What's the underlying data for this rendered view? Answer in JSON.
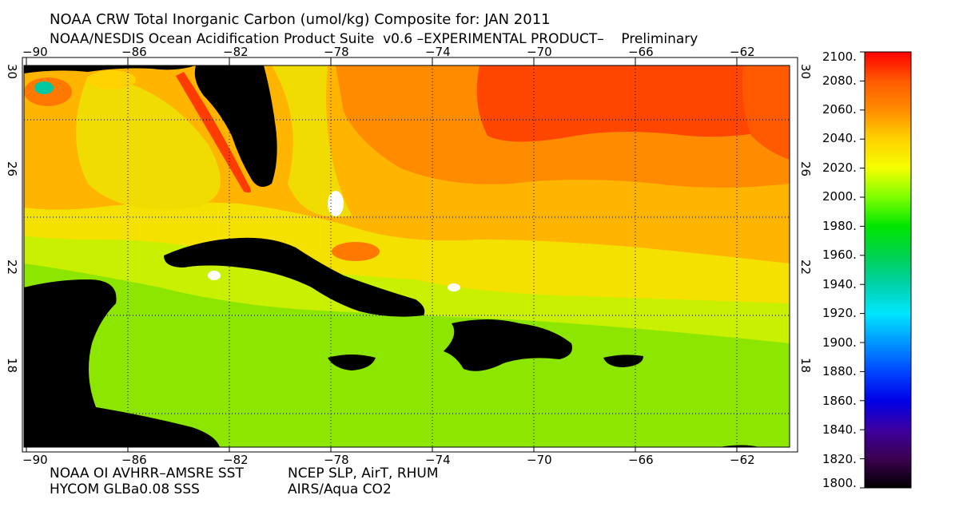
{
  "header": {
    "title": "NOAA CRW Total Inorganic Carbon (umol/kg) Composite for: JAN 2011",
    "subtitle": "NOAA/NESDIS Ocean Acidification Product Suite  v0.6 –EXPERIMENTAL PRODUCT–    Preliminary"
  },
  "map": {
    "lon_ticks": [
      "−90",
      "−86",
      "−82",
      "−78",
      "−74",
      "−70",
      "−66",
      "−62"
    ],
    "lat_ticks": [
      "30",
      "26",
      "22",
      "18"
    ]
  },
  "colorbar": {
    "labels": [
      "2100.",
      "2080.",
      "2060.",
      "2040.",
      "2020.",
      "2000.",
      "1980.",
      "1960.",
      "1940.",
      "1920.",
      "1900.",
      "1880.",
      "1860.",
      "1840.",
      "1820.",
      "1800."
    ],
    "colors": [
      "#ff0000",
      "#ff5a00",
      "#ff8c00",
      "#ffd200",
      "#f5ff00",
      "#7dff00",
      "#00e600",
      "#00d250",
      "#00d2aa",
      "#00e6ff",
      "#0096ff",
      "#0046ff",
      "#0000e6",
      "#3c00a0",
      "#3c0050",
      "#000000"
    ]
  },
  "credits": {
    "line1_left": "NOAA OI AVHRR–AMSRE SST",
    "line1_right": "NCEP SLP, AirT, RHUM",
    "line2_left": "HYCOM GLBa0.08 SSS",
    "line2_right": "AIRS/Aqua CO2"
  },
  "palette": {
    "ocean_green": "#8ce600",
    "ocean_yellowgreen": "#c8f000",
    "ocean_yellow": "#f5e100",
    "ocean_orange": "#ffb400",
    "ocean_darkorange": "#ff8200",
    "ocean_red": "#ff3c00",
    "land": "#000000"
  }
}
